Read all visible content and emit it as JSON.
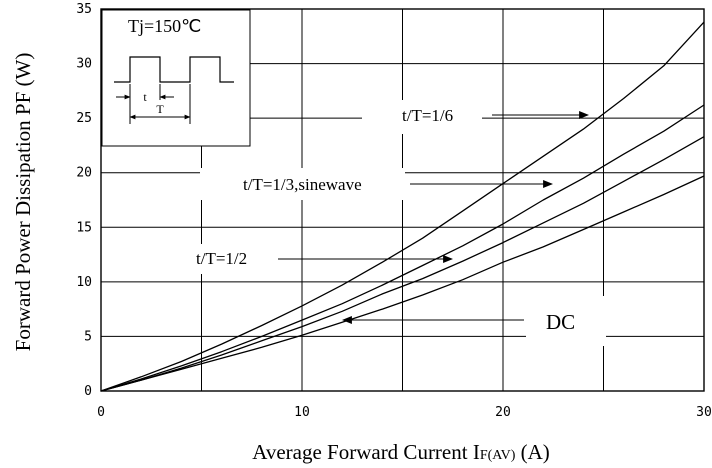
{
  "chart_data": {
    "type": "line",
    "xlabel": "Average Forward Current I",
    "xlabel_sub": "F(AV)",
    "xlabel_unit": " (A)",
    "ylabel": "Forward Power Dissipation PF (W)",
    "xlim": [
      0,
      30
    ],
    "ylim": [
      0,
      35
    ],
    "x_ticks": [
      "0",
      "10",
      "20",
      "30"
    ],
    "y_ticks": [
      "0",
      "5",
      "10",
      "15",
      "20",
      "25",
      "30",
      "35"
    ],
    "grid": true,
    "series": [
      {
        "name": "t/T=1/6",
        "x": [
          0,
          2,
          4,
          6,
          8,
          10,
          12,
          14,
          16,
          18,
          20,
          22,
          24,
          26,
          28,
          30
        ],
        "y": [
          0,
          1.3,
          2.7,
          4.3,
          6.0,
          7.8,
          9.7,
          11.8,
          14.0,
          16.5,
          19.0,
          21.5,
          24.0,
          26.8,
          29.8,
          33.8
        ]
      },
      {
        "name": "t/T=1/3,sinewave",
        "x": [
          0,
          2,
          4,
          6,
          8,
          10,
          12,
          14,
          16,
          18,
          20,
          22,
          24,
          26,
          28,
          30
        ],
        "y": [
          0,
          1.1,
          2.3,
          3.6,
          5.0,
          6.5,
          8.0,
          9.7,
          11.5,
          13.3,
          15.3,
          17.5,
          19.5,
          21.7,
          23.8,
          26.2
        ]
      },
      {
        "name": "t/T=1/2",
        "x": [
          0,
          2,
          4,
          6,
          8,
          10,
          12,
          14,
          16,
          18,
          20,
          22,
          24,
          26,
          28,
          30
        ],
        "y": [
          0,
          1.0,
          2.1,
          3.3,
          4.6,
          5.9,
          7.3,
          8.9,
          10.3,
          11.9,
          13.6,
          15.4,
          17.2,
          19.2,
          21.2,
          23.3
        ]
      },
      {
        "name": "DC",
        "x": [
          0,
          2,
          4,
          6,
          8,
          10,
          12,
          14,
          16,
          18,
          20,
          22,
          24,
          26,
          28,
          30
        ],
        "y": [
          0,
          1.0,
          2.0,
          3.0,
          4.0,
          5.1,
          6.3,
          7.5,
          8.8,
          10.2,
          11.8,
          13.2,
          14.8,
          16.4,
          18.0,
          19.7
        ]
      }
    ],
    "annotations": [
      {
        "text": "t/T=1/6",
        "series": "t/T=1/6"
      },
      {
        "text": "t/T=1/3,sinewave",
        "series": "t/T=1/3,sinewave"
      },
      {
        "text": "t/T=1/2",
        "series": "t/T=1/2"
      },
      {
        "text": "DC",
        "series": "DC"
      }
    ],
    "inset": {
      "title": "Tj=150℃",
      "t_label": "t",
      "T_label": "T"
    }
  }
}
